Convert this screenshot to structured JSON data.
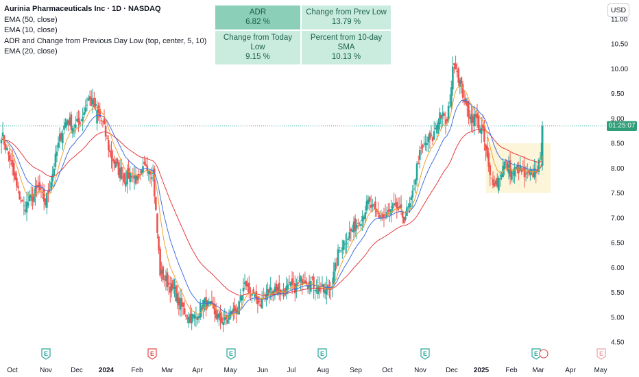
{
  "legend": {
    "title": "Aurinia Pharmaceuticals Inc · 1D · NASDAQ",
    "lines": [
      "EMA (50, close)",
      "EMA (10, close)",
      "ADR and Change from Previous Day Low (top, center, 5, 10)",
      "EMA (20, close)"
    ]
  },
  "stats": [
    {
      "label": "ADR",
      "value": "6.82 %"
    },
    {
      "label": "Change from Prev Low",
      "value": "13.79 %"
    },
    {
      "label": "Change from Today Low",
      "value": "9.15 %"
    },
    {
      "label": "Percent from 10-day SMA",
      "value": "10.13 %"
    }
  ],
  "currency_button": "USD",
  "last_price_countdown": "01:25:07",
  "colors": {
    "up": "#26a69a",
    "down": "#ef5350",
    "ema50": "#e5393f",
    "ema10": "#f0a030",
    "ema20": "#3f6fe0",
    "stat_dark": "#8ccfb8",
    "stat_light": "#c9ecdf",
    "highlight_box": "#fbf3cf"
  },
  "chart_data": {
    "type": "candlestick",
    "symbol": "AUPH",
    "interval": "1D",
    "y_axis": {
      "ticks": [
        "11.00",
        "10.50",
        "10.00",
        "9.50",
        "9.00",
        "8.50",
        "8.00",
        "7.50",
        "7.00",
        "6.50",
        "6.00",
        "5.50",
        "5.00",
        "4.50"
      ],
      "range": [
        4.5,
        11.0
      ]
    },
    "x_axis": {
      "ticks": [
        "Oct",
        "Nov",
        "Dec",
        "2024",
        "Feb",
        "Mar",
        "Apr",
        "May",
        "Jun",
        "Jul",
        "Aug",
        "Sep",
        "Oct",
        "Nov",
        "Dec",
        "2025",
        "Feb",
        "Mar",
        "Apr",
        "May"
      ]
    },
    "earnings_markers": [
      {
        "month": "Nov",
        "label": "E",
        "type": "positive"
      },
      {
        "month": "Feb",
        "label": "E",
        "type": "negative"
      },
      {
        "month": "May",
        "label": "E",
        "type": "positive"
      },
      {
        "month": "Aug",
        "label": "E",
        "type": "positive"
      },
      {
        "month": "Nov",
        "label": "E",
        "type": "positive"
      },
      {
        "month": "Feb",
        "label": "E",
        "type": "positive"
      },
      {
        "month": "May",
        "label": "E",
        "type": "future"
      }
    ],
    "series": [
      {
        "name": "close",
        "points": [
          [
            "2023-09-25",
            8.7
          ],
          [
            "2023-10-03",
            8.2
          ],
          [
            "2023-10-10",
            7.6
          ],
          [
            "2023-10-17",
            7.2
          ],
          [
            "2023-10-24",
            7.4
          ],
          [
            "2023-10-31",
            7.6
          ],
          [
            "2023-11-07",
            7.3
          ],
          [
            "2023-11-14",
            7.9
          ],
          [
            "2023-11-21",
            8.6
          ],
          [
            "2023-11-28",
            9.0
          ],
          [
            "2023-12-05",
            8.8
          ],
          [
            "2023-12-12",
            9.0
          ],
          [
            "2023-12-19",
            9.4
          ],
          [
            "2023-12-26",
            9.2
          ],
          [
            "2024-01-02",
            8.9
          ],
          [
            "2024-01-09",
            8.3
          ],
          [
            "2024-01-16",
            8.0
          ],
          [
            "2024-01-23",
            7.8
          ],
          [
            "2024-01-30",
            7.9
          ],
          [
            "2024-02-06",
            7.7
          ],
          [
            "2024-02-13",
            8.1
          ],
          [
            "2024-02-20",
            7.9
          ],
          [
            "2024-02-27",
            5.9
          ],
          [
            "2024-03-05",
            5.7
          ],
          [
            "2024-03-12",
            5.5
          ],
          [
            "2024-03-19",
            5.2
          ],
          [
            "2024-03-26",
            5.0
          ],
          [
            "2024-04-02",
            5.0
          ],
          [
            "2024-04-09",
            5.3
          ],
          [
            "2024-04-16",
            5.2
          ],
          [
            "2024-04-23",
            5.0
          ],
          [
            "2024-04-30",
            4.9
          ],
          [
            "2024-05-07",
            5.1
          ],
          [
            "2024-05-14",
            5.2
          ],
          [
            "2024-05-21",
            5.7
          ],
          [
            "2024-05-28",
            5.4
          ],
          [
            "2024-06-04",
            5.3
          ],
          [
            "2024-06-11",
            5.5
          ],
          [
            "2024-06-18",
            5.6
          ],
          [
            "2024-06-25",
            5.5
          ],
          [
            "2024-07-02",
            5.6
          ],
          [
            "2024-07-09",
            5.6
          ],
          [
            "2024-07-16",
            5.8
          ],
          [
            "2024-07-23",
            5.7
          ],
          [
            "2024-07-30",
            5.6
          ],
          [
            "2024-08-06",
            5.5
          ],
          [
            "2024-08-13",
            5.7
          ],
          [
            "2024-08-20",
            6.4
          ],
          [
            "2024-08-27",
            6.6
          ],
          [
            "2024-09-03",
            6.8
          ],
          [
            "2024-09-10",
            7.0
          ],
          [
            "2024-09-17",
            7.3
          ],
          [
            "2024-09-24",
            7.1
          ],
          [
            "2024-10-01",
            7.0
          ],
          [
            "2024-10-08",
            7.1
          ],
          [
            "2024-10-15",
            7.2
          ],
          [
            "2024-10-22",
            7.0
          ],
          [
            "2024-10-29",
            7.3
          ],
          [
            "2024-11-05",
            8.2
          ],
          [
            "2024-11-12",
            8.5
          ],
          [
            "2024-11-19",
            8.6
          ],
          [
            "2024-11-26",
            9.1
          ],
          [
            "2024-12-03",
            8.9
          ],
          [
            "2024-12-10",
            10.2
          ],
          [
            "2024-12-17",
            9.6
          ],
          [
            "2024-12-24",
            9.1
          ],
          [
            "2024-12-31",
            9.0
          ],
          [
            "2025-01-07",
            8.7
          ],
          [
            "2025-01-14",
            7.8
          ],
          [
            "2025-01-21",
            7.7
          ],
          [
            "2025-01-28",
            8.1
          ],
          [
            "2025-02-04",
            7.9
          ],
          [
            "2025-02-11",
            8.0
          ],
          [
            "2025-02-18",
            7.8
          ],
          [
            "2025-02-25",
            7.9
          ],
          [
            "2025-03-04",
            8.1
          ],
          [
            "2025-03-06",
            8.85
          ]
        ]
      }
    ],
    "last_price": 8.85
  }
}
